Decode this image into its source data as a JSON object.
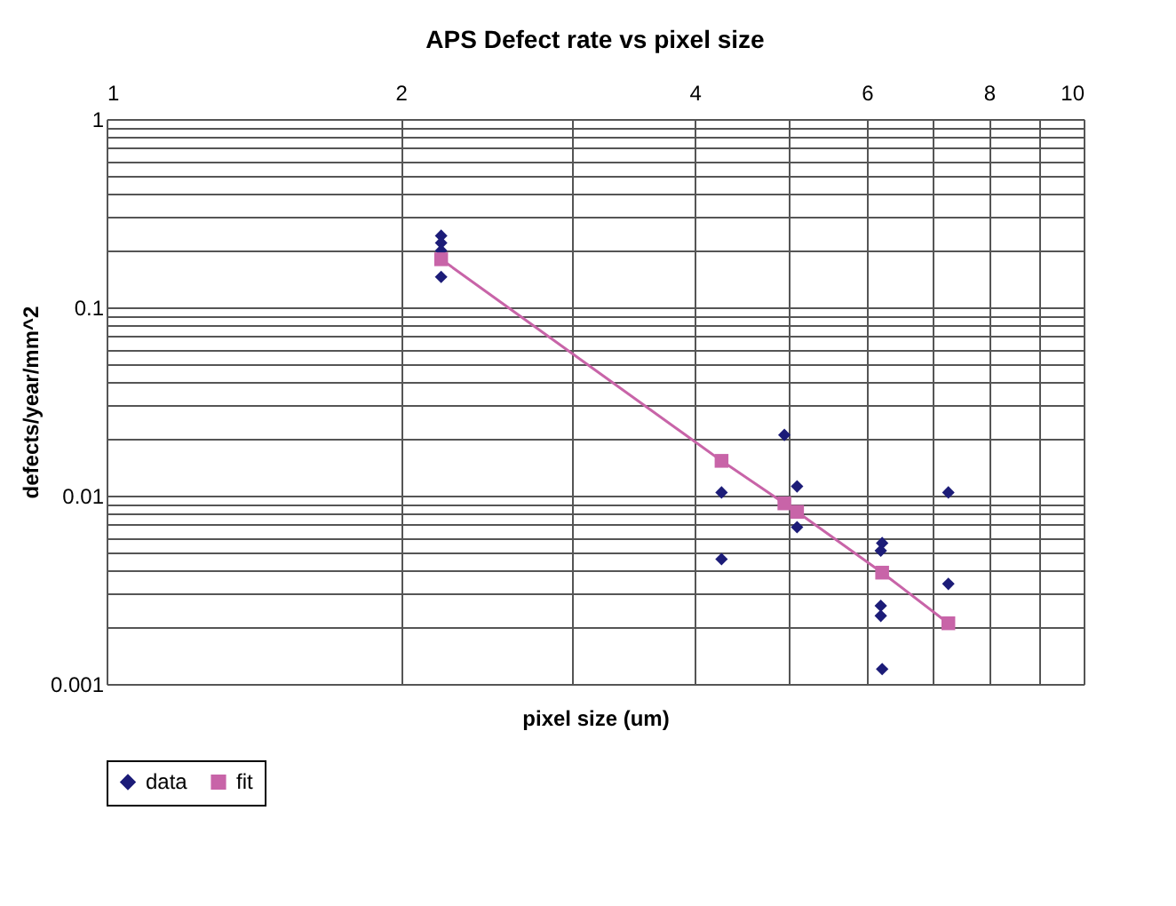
{
  "chart_data": {
    "type": "scatter",
    "title": "APS Defect rate vs pixel size",
    "xlabel": "pixel size (um)",
    "ylabel": "defects/year/mm^2",
    "log": "xy",
    "grid": true,
    "legend": "bottom",
    "xlim": [
      1,
      10
    ],
    "xticks": [
      1,
      2,
      {
        "value": 3,
        "label": null
      },
      4,
      {
        "value": 5,
        "label": null
      },
      6,
      {
        "value": 7,
        "label": null
      },
      8,
      {
        "value": 9,
        "label": null
      },
      10
    ],
    "ylim": [
      0.001,
      1
    ],
    "yticks": [
      0.001,
      {
        "value": 0.002,
        "label": null
      },
      {
        "value": 0.003,
        "label": null
      },
      {
        "value": 0.004,
        "label": null
      },
      {
        "value": 0.005,
        "label": null
      },
      {
        "value": 0.006,
        "label": null
      },
      {
        "value": 0.007,
        "label": null
      },
      {
        "value": 0.008,
        "label": null
      },
      {
        "value": 0.009,
        "label": null
      },
      0.01,
      {
        "value": 0.02,
        "label": null
      },
      {
        "value": 0.03,
        "label": null
      },
      {
        "value": 0.04,
        "label": null
      },
      {
        "value": 0.05,
        "label": null
      },
      {
        "value": 0.06,
        "label": null
      },
      {
        "value": 0.07,
        "label": null
      },
      {
        "value": 0.08,
        "label": null
      },
      {
        "value": 0.09,
        "label": null
      },
      0.1,
      {
        "value": 0.2,
        "label": null
      },
      {
        "value": 0.3,
        "label": null
      },
      {
        "value": 0.4,
        "label": null
      },
      {
        "value": 0.5,
        "label": null
      },
      {
        "value": 0.6,
        "label": null
      },
      {
        "value": 0.7,
        "label": null
      },
      {
        "value": 0.8,
        "label": null
      },
      {
        "value": 0.9,
        "label": null
      },
      1
    ],
    "series": [
      {
        "name": "data",
        "marker": "diamond",
        "color": "#1c1c78",
        "x": [
          2.2,
          2.2,
          2.2,
          2.2,
          4.26,
          4.26,
          4.94,
          5.09,
          5.09,
          6.22,
          6.2,
          6.2,
          6.2,
          6.22,
          7.27,
          7.27
        ],
        "values": [
          0.24,
          0.22,
          0.2,
          0.145,
          0.0104,
          0.0046,
          0.021,
          0.0112,
          0.0068,
          0.0056,
          0.0051,
          0.0026,
          0.0023,
          0.0012,
          0.0104,
          0.0034
        ]
      },
      {
        "name": "fit",
        "type": "line",
        "marker": "square",
        "line_style": "solid",
        "color": "#c864a8",
        "x": [
          2.2,
          4.26,
          4.94,
          5.09,
          6.22,
          7.27
        ],
        "values": [
          0.18,
          0.0153,
          0.0091,
          0.0082,
          0.0039,
          0.0021
        ]
      }
    ]
  }
}
